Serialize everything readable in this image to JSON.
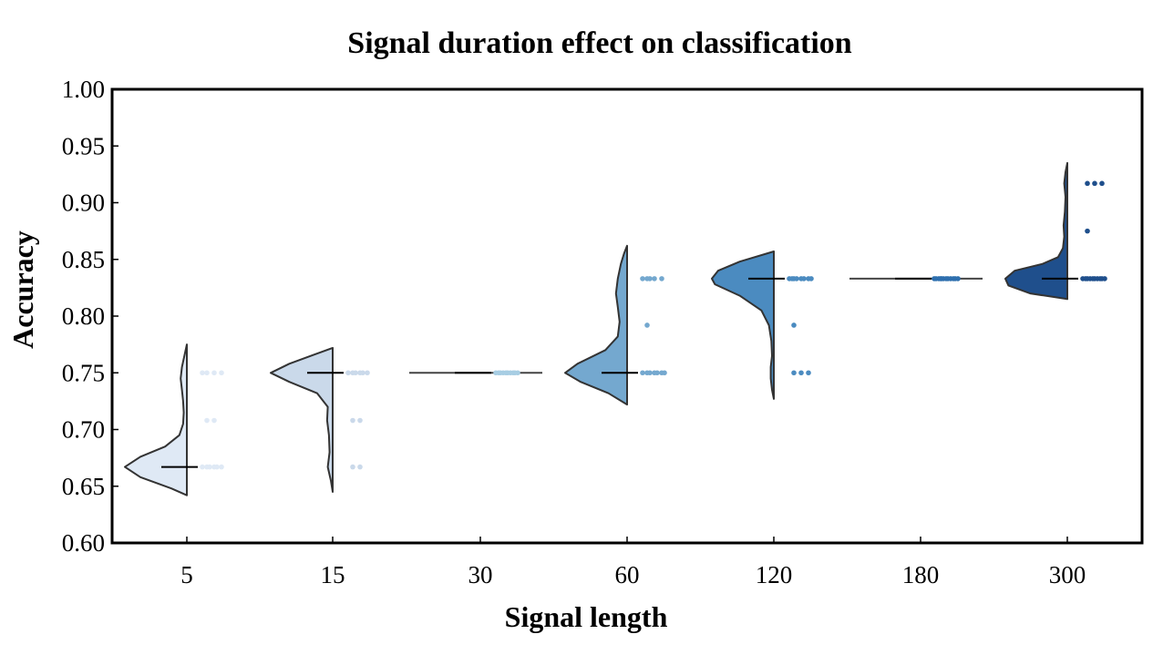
{
  "chart_data": {
    "type": "raincloud",
    "title": "Signal duration effect on classification",
    "xlabel": "Signal length",
    "ylabel": "Accuracy",
    "ylim": [
      0.6,
      1.0
    ],
    "yticks": [
      "0.60",
      "0.65",
      "0.70",
      "0.75",
      "0.80",
      "0.85",
      "0.90",
      "0.95",
      "1.00"
    ],
    "grid": false,
    "legend": "none",
    "categories": [
      "5",
      "15",
      "30",
      "60",
      "120",
      "180",
      "300"
    ],
    "colors": [
      "#dfe9f5",
      "#cad9ea",
      "#a7cde3",
      "#74a8cf",
      "#4b8bc0",
      "#2e6fae",
      "#1f4f8c"
    ],
    "series": [
      {
        "category": "5",
        "median": 0.667,
        "points": [
          0.667,
          0.667,
          0.667,
          0.667,
          0.667,
          0.667,
          0.708,
          0.708,
          0.75,
          0.75,
          0.75,
          0.75
        ],
        "density": [
          [
            0.642,
            0.0
          ],
          [
            0.648,
            0.25
          ],
          [
            0.658,
            0.75
          ],
          [
            0.667,
            1.0
          ],
          [
            0.676,
            0.75
          ],
          [
            0.685,
            0.35
          ],
          [
            0.695,
            0.12
          ],
          [
            0.705,
            0.06
          ],
          [
            0.715,
            0.05
          ],
          [
            0.725,
            0.06
          ],
          [
            0.735,
            0.08
          ],
          [
            0.745,
            0.1
          ],
          [
            0.755,
            0.08
          ],
          [
            0.765,
            0.04
          ],
          [
            0.775,
            0.0
          ]
        ]
      },
      {
        "category": "15",
        "median": 0.75,
        "points": [
          0.75,
          0.75,
          0.75,
          0.75,
          0.75,
          0.75,
          0.708,
          0.708,
          0.667,
          0.667
        ],
        "density": [
          [
            0.645,
            0.0
          ],
          [
            0.655,
            0.03
          ],
          [
            0.667,
            0.08
          ],
          [
            0.68,
            0.05
          ],
          [
            0.695,
            0.06
          ],
          [
            0.708,
            0.09
          ],
          [
            0.72,
            0.08
          ],
          [
            0.732,
            0.25
          ],
          [
            0.742,
            0.7
          ],
          [
            0.75,
            1.0
          ],
          [
            0.758,
            0.7
          ],
          [
            0.766,
            0.3
          ],
          [
            0.772,
            0.0
          ]
        ]
      },
      {
        "category": "30",
        "median": 0.75,
        "points": [
          0.75,
          0.75,
          0.75,
          0.75,
          0.75,
          0.75,
          0.75,
          0.75,
          0.75,
          0.75
        ],
        "density": [
          [
            0.7495,
            0.0
          ],
          [
            0.75,
            1.0
          ],
          [
            0.7505,
            0.0
          ]
        ]
      },
      {
        "category": "60",
        "median": 0.75,
        "points": [
          0.75,
          0.75,
          0.75,
          0.75,
          0.75,
          0.75,
          0.75,
          0.792,
          0.833,
          0.833,
          0.833,
          0.833,
          0.833
        ],
        "density": [
          [
            0.722,
            0.0
          ],
          [
            0.732,
            0.3
          ],
          [
            0.742,
            0.75
          ],
          [
            0.75,
            1.0
          ],
          [
            0.758,
            0.8
          ],
          [
            0.77,
            0.35
          ],
          [
            0.782,
            0.15
          ],
          [
            0.795,
            0.12
          ],
          [
            0.808,
            0.15
          ],
          [
            0.82,
            0.18
          ],
          [
            0.833,
            0.15
          ],
          [
            0.846,
            0.1
          ],
          [
            0.855,
            0.05
          ],
          [
            0.862,
            0.0
          ]
        ]
      },
      {
        "category": "120",
        "median": 0.833,
        "points": [
          0.833,
          0.833,
          0.833,
          0.833,
          0.833,
          0.833,
          0.833,
          0.833,
          0.792,
          0.75,
          0.75,
          0.75
        ],
        "density": [
          [
            0.727,
            0.0
          ],
          [
            0.735,
            0.03
          ],
          [
            0.745,
            0.05
          ],
          [
            0.755,
            0.05
          ],
          [
            0.765,
            0.03
          ],
          [
            0.778,
            0.04
          ],
          [
            0.792,
            0.08
          ],
          [
            0.805,
            0.2
          ],
          [
            0.818,
            0.55
          ],
          [
            0.828,
            0.95
          ],
          [
            0.833,
            1.0
          ],
          [
            0.84,
            0.9
          ],
          [
            0.848,
            0.55
          ],
          [
            0.857,
            0.0
          ]
        ]
      },
      {
        "category": "180",
        "median": 0.833,
        "points": [
          0.833,
          0.833,
          0.833,
          0.833,
          0.833,
          0.833,
          0.833,
          0.833,
          0.833,
          0.833,
          0.833,
          0.833
        ],
        "density": [
          [
            0.8325,
            0.0
          ],
          [
            0.833,
            1.0
          ],
          [
            0.8335,
            0.0
          ]
        ]
      },
      {
        "category": "300",
        "median": 0.833,
        "points": [
          0.833,
          0.833,
          0.833,
          0.833,
          0.833,
          0.833,
          0.833,
          0.833,
          0.833,
          0.833,
          0.875,
          0.917,
          0.917,
          0.917
        ],
        "density": [
          [
            0.815,
            0.0
          ],
          [
            0.82,
            0.6
          ],
          [
            0.827,
            0.95
          ],
          [
            0.833,
            1.0
          ],
          [
            0.84,
            0.85
          ],
          [
            0.846,
            0.4
          ],
          [
            0.852,
            0.15
          ],
          [
            0.86,
            0.07
          ],
          [
            0.87,
            0.05
          ],
          [
            0.88,
            0.06
          ],
          [
            0.892,
            0.04
          ],
          [
            0.905,
            0.03
          ],
          [
            0.917,
            0.05
          ],
          [
            0.927,
            0.03
          ],
          [
            0.935,
            0.0
          ]
        ]
      }
    ]
  }
}
